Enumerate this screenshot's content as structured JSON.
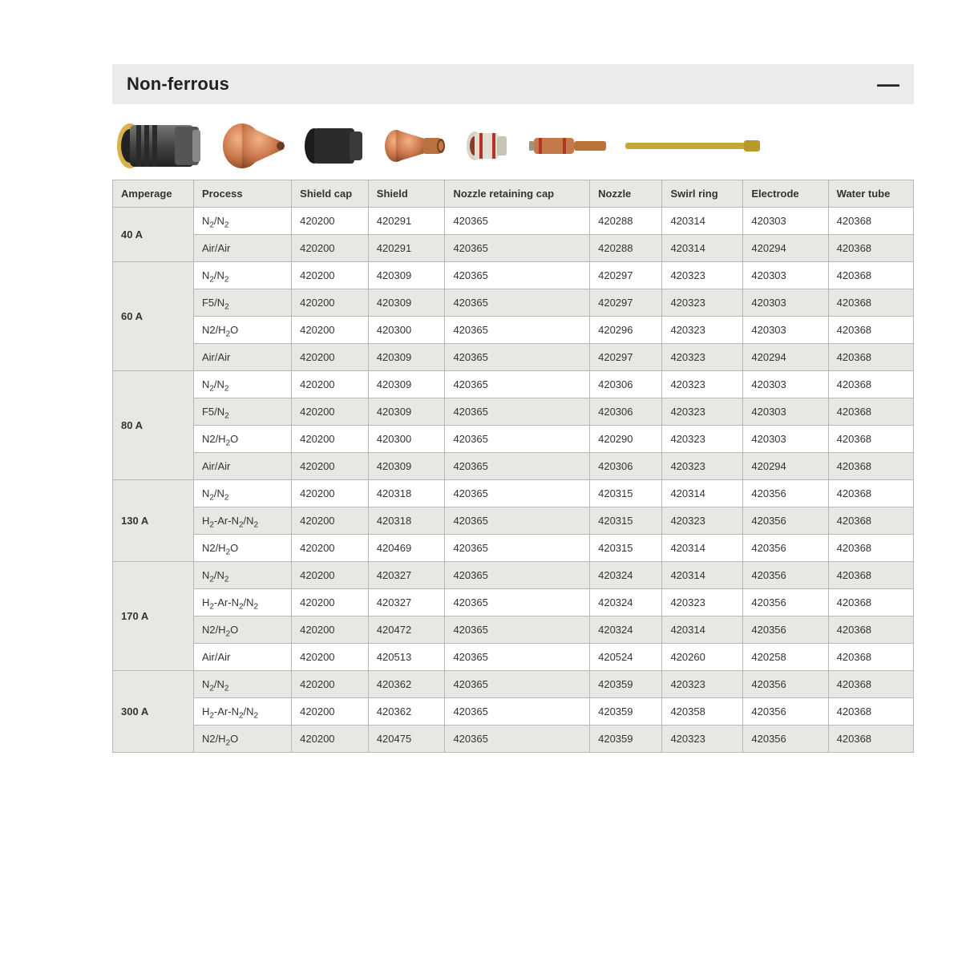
{
  "section": {
    "title": "Non-ferrous",
    "collapse_glyph": "—"
  },
  "colors": {
    "header_bg": "#ecebe9",
    "cell_bg_alt": "#e9e7e4",
    "cell_bg": "#ffffff",
    "border": "#b8b8b8",
    "text": "#333333"
  },
  "images": [
    {
      "name": "shield-cap-img"
    },
    {
      "name": "shield-img"
    },
    {
      "name": "nozzle-retaining-cap-img"
    },
    {
      "name": "nozzle-img"
    },
    {
      "name": "swirl-ring-img"
    },
    {
      "name": "electrode-img"
    },
    {
      "name": "water-tube-img"
    }
  ],
  "table": {
    "columns": [
      "Amperage",
      "Process",
      "Shield cap",
      "Shield",
      "Nozzle retaining cap",
      "Nozzle",
      "Swirl ring",
      "Electrode",
      "Water tube"
    ],
    "groups": [
      {
        "amperage": "40 A",
        "rows": [
          {
            "process_html": "N<sub>2</sub>/N<sub>2</sub>",
            "shield_cap": "420200",
            "shield": "420291",
            "nrc": "420365",
            "nozzle": "420288",
            "swirl": "420314",
            "electrode": "420303",
            "water": "420368"
          },
          {
            "process_html": "Air/Air",
            "shield_cap": "420200",
            "shield": "420291",
            "nrc": "420365",
            "nozzle": "420288",
            "swirl": "420314",
            "electrode": "420294",
            "water": "420368"
          }
        ]
      },
      {
        "amperage": "60 A",
        "rows": [
          {
            "process_html": "N<sub>2</sub>/N<sub>2</sub>",
            "shield_cap": "420200",
            "shield": "420309",
            "nrc": "420365",
            "nozzle": "420297",
            "swirl": "420323",
            "electrode": "420303",
            "water": "420368"
          },
          {
            "process_html": "F5/N<sub>2</sub>",
            "shield_cap": "420200",
            "shield": "420309",
            "nrc": "420365",
            "nozzle": "420297",
            "swirl": "420323",
            "electrode": "420303",
            "water": "420368"
          },
          {
            "process_html": "N2/H<sub>2</sub>O",
            "shield_cap": "420200",
            "shield": "420300",
            "nrc": "420365",
            "nozzle": "420296",
            "swirl": "420323",
            "electrode": "420303",
            "water": "420368"
          },
          {
            "process_html": "Air/Air",
            "shield_cap": "420200",
            "shield": "420309",
            "nrc": "420365",
            "nozzle": "420297",
            "swirl": "420323",
            "electrode": "420294",
            "water": "420368"
          }
        ]
      },
      {
        "amperage": "80 A",
        "rows": [
          {
            "process_html": "N<sub>2</sub>/N<sub>2</sub>",
            "shield_cap": "420200",
            "shield": "420309",
            "nrc": "420365",
            "nozzle": "420306",
            "swirl": "420323",
            "electrode": "420303",
            "water": "420368"
          },
          {
            "process_html": "F5/N<sub>2</sub>",
            "shield_cap": "420200",
            "shield": "420309",
            "nrc": "420365",
            "nozzle": "420306",
            "swirl": "420323",
            "electrode": "420303",
            "water": "420368"
          },
          {
            "process_html": "N2/H<sub>2</sub>O",
            "shield_cap": "420200",
            "shield": "420300",
            "nrc": "420365",
            "nozzle": "420290",
            "swirl": "420323",
            "electrode": "420303",
            "water": "420368"
          },
          {
            "process_html": "Air/Air",
            "shield_cap": "420200",
            "shield": "420309",
            "nrc": "420365",
            "nozzle": "420306",
            "swirl": "420323",
            "electrode": "420294",
            "water": "420368"
          }
        ]
      },
      {
        "amperage": "130 A",
        "rows": [
          {
            "process_html": "N<sub>2</sub>/N<sub>2</sub>",
            "shield_cap": "420200",
            "shield": "420318",
            "nrc": "420365",
            "nozzle": "420315",
            "swirl": "420314",
            "electrode": "420356",
            "water": "420368"
          },
          {
            "process_html": "H<sub>2</sub>-Ar-N<sub>2</sub>/N<sub>2</sub>",
            "shield_cap": "420200",
            "shield": "420318",
            "nrc": "420365",
            "nozzle": "420315",
            "swirl": "420323",
            "electrode": "420356",
            "water": "420368"
          },
          {
            "process_html": "N2/H<sub>2</sub>O",
            "shield_cap": "420200",
            "shield": "420469",
            "nrc": "420365",
            "nozzle": "420315",
            "swirl": "420314",
            "electrode": "420356",
            "water": "420368"
          }
        ]
      },
      {
        "amperage": "170 A",
        "rows": [
          {
            "process_html": "N<sub>2</sub>/N<sub>2</sub>",
            "shield_cap": "420200",
            "shield": "420327",
            "nrc": "420365",
            "nozzle": "420324",
            "swirl": "420314",
            "electrode": "420356",
            "water": "420368"
          },
          {
            "process_html": "H<sub>2</sub>-Ar-N<sub>2</sub>/N<sub>2</sub>",
            "shield_cap": "420200",
            "shield": "420327",
            "nrc": "420365",
            "nozzle": "420324",
            "swirl": "420323",
            "electrode": "420356",
            "water": "420368"
          },
          {
            "process_html": "N2/H<sub>2</sub>O",
            "shield_cap": "420200",
            "shield": "420472",
            "nrc": "420365",
            "nozzle": "420324",
            "swirl": "420314",
            "electrode": "420356",
            "water": "420368"
          },
          {
            "process_html": "Air/Air",
            "shield_cap": "420200",
            "shield": "420513",
            "nrc": "420365",
            "nozzle": "420524",
            "swirl": "420260",
            "electrode": "420258",
            "water": "420368"
          }
        ]
      },
      {
        "amperage": "300 A",
        "rows": [
          {
            "process_html": "N<sub>2</sub>/N<sub>2</sub>",
            "shield_cap": "420200",
            "shield": "420362",
            "nrc": "420365",
            "nozzle": "420359",
            "swirl": "420323",
            "electrode": "420356",
            "water": "420368"
          },
          {
            "process_html": "H<sub>2</sub>-Ar-N<sub>2</sub>/N<sub>2</sub>",
            "shield_cap": "420200",
            "shield": "420362",
            "nrc": "420365",
            "nozzle": "420359",
            "swirl": "420358",
            "electrode": "420356",
            "water": "420368"
          },
          {
            "process_html": "N2/H<sub>2</sub>O",
            "shield_cap": "420200",
            "shield": "420475",
            "nrc": "420365",
            "nozzle": "420359",
            "swirl": "420323",
            "electrode": "420356",
            "water": "420368"
          }
        ]
      }
    ]
  }
}
